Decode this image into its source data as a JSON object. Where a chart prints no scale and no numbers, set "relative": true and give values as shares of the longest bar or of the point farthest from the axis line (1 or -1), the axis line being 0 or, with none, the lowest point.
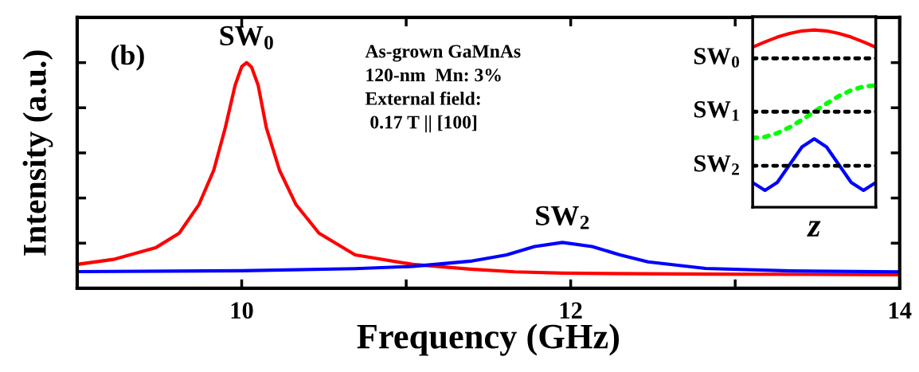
{
  "chart_data": [
    {
      "type": "line",
      "relative": true,
      "xlabel": "Frequency (GHz)",
      "ylabel": "Intensity (a.u.)",
      "xlim": [
        9,
        14
      ],
      "xticks": [
        10,
        {
          "value": 11,
          "label": null
        },
        12,
        {
          "value": 13,
          "label": null
        },
        14
      ],
      "tick_labels": "x",
      "grid": false,
      "legend": false,
      "line_style": "solid",
      "marker": "none",
      "series": [
        {
          "color": "#ff0000",
          "x": [
            9.0,
            9.22,
            9.48,
            9.62,
            9.74,
            9.83,
            9.9,
            9.96,
            10.0,
            10.03,
            10.06,
            10.1,
            10.15,
            10.23,
            10.33,
            10.47,
            10.69,
            11.04,
            11.39,
            11.66,
            11.95,
            12.82,
            14.0
          ],
          "values": [
            0.106,
            0.128,
            0.181,
            0.244,
            0.371,
            0.523,
            0.711,
            0.9,
            0.982,
            1.0,
            0.98,
            0.9,
            0.711,
            0.523,
            0.371,
            0.244,
            0.148,
            0.106,
            0.085,
            0.073,
            0.067,
            0.063,
            0.06
          ]
        },
        {
          "color": "#0000ff",
          "x": [
            9.0,
            10.0,
            10.69,
            11.04,
            11.39,
            11.61,
            11.78,
            11.95,
            12.13,
            12.3,
            12.47,
            12.82,
            13.34,
            14.0
          ],
          "values": [
            0.074,
            0.078,
            0.087,
            0.097,
            0.12,
            0.148,
            0.185,
            0.203,
            0.185,
            0.148,
            0.117,
            0.088,
            0.077,
            0.073
          ]
        }
      ],
      "annotations": [
        "(b)",
        {
          "text": "SW$_{0}$",
          "x": 10.03,
          "y": 1.0
        },
        "As-grown GaMnAs\n120-nm  Mn: 3%\nExternal field:\n 0.17 T || [100]",
        {
          "text": "SW$_{2}$",
          "x": 11.95,
          "y": 0.203
        }
      ]
    },
    {
      "type": "line",
      "relative": true,
      "xlabel": "z",
      "tick_labels": false,
      "grid": false,
      "legend": false,
      "categories": [
        null,
        null,
        null,
        null,
        null,
        null,
        null,
        null,
        null,
        null,
        null
      ],
      "series": [
        {
          "color": "#ff0000",
          "values": [
            0.903,
            0.933,
            0.96,
            0.981,
            0.995,
            1.0,
            0.995,
            0.981,
            0.96,
            0.933,
            0.903
          ]
        },
        {
          "color": "#00ff00",
          "line_style": "dotted",
          "values": [
            0.39,
            0.397,
            0.418,
            0.451,
            0.493,
            0.539,
            0.585,
            0.627,
            0.66,
            0.681,
            0.688
          ]
        },
        {
          "color": "#0000ff",
          "values": [
            0.139,
            0.095,
            0.14,
            0.24,
            0.34,
            0.386,
            0.34,
            0.24,
            0.14,
            0.095,
            0.139
          ]
        }
      ],
      "ref_lines": [
        {
          "axis": "y",
          "value": 0.84,
          "label": "SW$_{0}$",
          "color": "#000000",
          "line_style": "dotted"
        },
        {
          "axis": "y",
          "value": 0.539,
          "label": "SW$_{1}$",
          "color": "#000000",
          "line_style": "dotted"
        },
        {
          "axis": "y",
          "value": 0.234,
          "label": "SW$_{2}$",
          "color": "#000000",
          "line_style": "dotted"
        }
      ]
    }
  ]
}
